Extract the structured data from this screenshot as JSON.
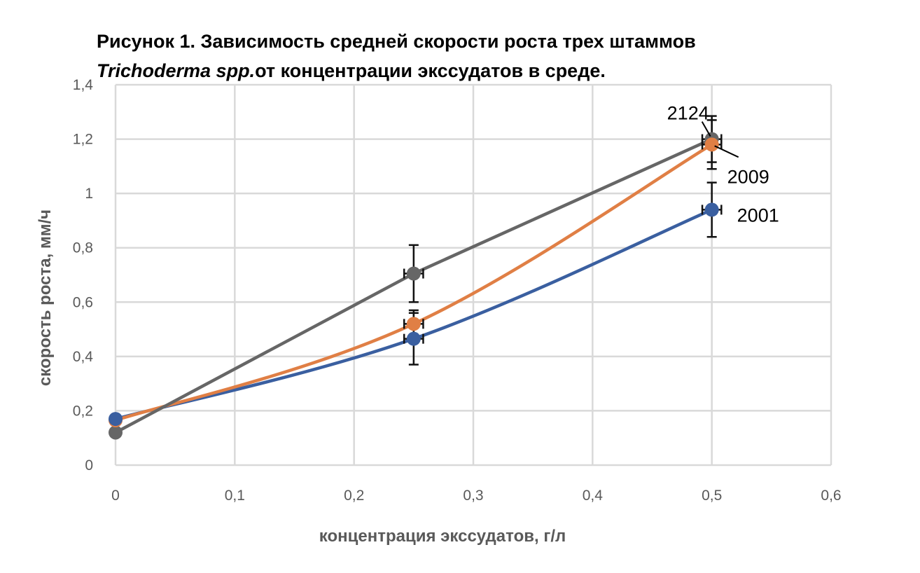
{
  "chart_data": {
    "type": "line",
    "title_line1": "Рисунок 1. Зависимость средней скорости роста трех штаммов",
    "title_line2_italic": "Trichoderma spp.",
    "title_line2_rest": "от концентрации экссудатов в среде.",
    "xlabel": "концентрация экссудатов, г/л",
    "ylabel": "скорость роста, мм/ч",
    "xlim": [
      0,
      0.6
    ],
    "ylim": [
      0,
      1.4
    ],
    "x_ticks": [
      "0",
      "0,1",
      "0,2",
      "0,3",
      "0,4",
      "0,5",
      "0,6"
    ],
    "y_ticks": [
      "0",
      "0,2",
      "0,4",
      "0,6",
      "0,8",
      "1",
      "1,2",
      "1,4"
    ],
    "grid": true,
    "series": [
      {
        "name": "2124",
        "color": "#666666",
        "smooth": false,
        "x": [
          0,
          0.25,
          0.5
        ],
        "y": [
          0.12,
          0.705,
          1.2
        ],
        "yerr": [
          0,
          0.105,
          0.085
        ],
        "xerr": [
          0,
          0.008,
          0.008
        ]
      },
      {
        "name": "2009",
        "color": "#E07F45",
        "smooth": true,
        "x": [
          0,
          0.25,
          0.5
        ],
        "y": [
          0.165,
          0.52,
          1.18
        ],
        "yerr": [
          0,
          0.05,
          0.09
        ],
        "xerr": [
          0,
          0.008,
          0.008
        ]
      },
      {
        "name": "2001",
        "color": "#3A5FA0",
        "smooth": true,
        "x": [
          0,
          0.25,
          0.5
        ],
        "y": [
          0.17,
          0.465,
          0.94
        ],
        "yerr": [
          0,
          0.095,
          0.1
        ],
        "xerr": [
          0,
          0.008,
          0.008
        ]
      }
    ]
  }
}
